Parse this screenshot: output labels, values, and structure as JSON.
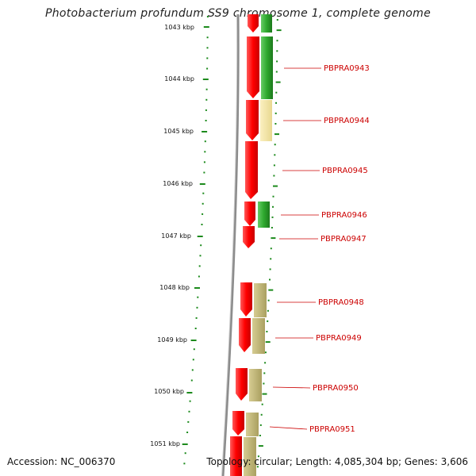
{
  "title": "Photobacterium profundum SS9 chromosome 1, complete genome",
  "footer": {
    "accession": "Accession: NC_006370",
    "topology": "Topology: circular; Length: 4,085,304 bp; Genes: 3,606"
  },
  "scale_labels": [
    "1043 kbp",
    "1044 kbp",
    "1045 kbp",
    "1046 kbp",
    "1047 kbp",
    "1048 kbp",
    "1049 kbp",
    "1050 kbp",
    "1051 kbp"
  ],
  "gene_labels": [
    "PBPRA0943",
    "PBPRA0944",
    "PBPRA0945",
    "PBPRA0946",
    "PBPRA0947",
    "PBPRA0948",
    "PBPRA0949",
    "PBPRA0950",
    "PBPRA0951"
  ],
  "colors": {
    "gene_red": "#ff0000",
    "cog_green": "#2ea82e",
    "cog_pale_yellow": "#f2e3a0",
    "cog_olive": "#c2b877",
    "backbone": "#8c8c8c",
    "scale_tick": "#1c8a1c",
    "label": "#cc0000"
  }
}
